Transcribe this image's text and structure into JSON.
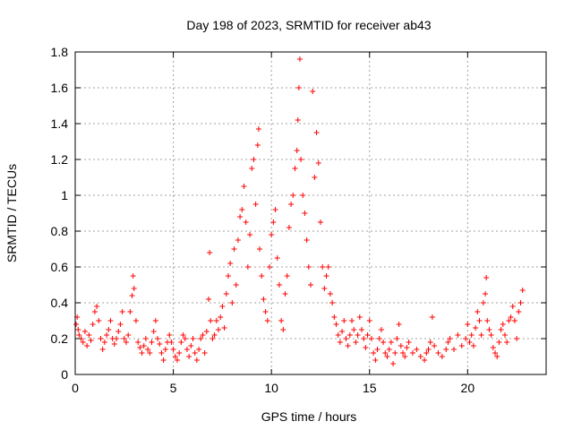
{
  "chart_data": {
    "type": "scatter",
    "title": "Day 198 of 2023, SRMTID for receiver ab43",
    "xlabel": "GPS time / hours",
    "ylabel": "SRMTID / TECUs",
    "xlim": [
      0,
      24
    ],
    "ylim": [
      0,
      1.8
    ],
    "xticks": [
      0,
      5,
      10,
      15,
      20
    ],
    "yticks": [
      0,
      0.2,
      0.4,
      0.6,
      0.8,
      1,
      1.2,
      1.4,
      1.6,
      1.8
    ],
    "grid": true,
    "marker": "+",
    "color": "#ff0000",
    "series": [
      {
        "name": "SRMTID",
        "points": [
          [
            0.05,
            0.28
          ],
          [
            0.1,
            0.32
          ],
          [
            0.15,
            0.25
          ],
          [
            0.2,
            0.22
          ],
          [
            0.3,
            0.2
          ],
          [
            0.4,
            0.18
          ],
          [
            0.5,
            0.24
          ],
          [
            0.6,
            0.16
          ],
          [
            0.7,
            0.22
          ],
          [
            0.8,
            0.19
          ],
          [
            0.9,
            0.28
          ],
          [
            1.0,
            0.35
          ],
          [
            1.1,
            0.38
          ],
          [
            1.2,
            0.3
          ],
          [
            1.3,
            0.2
          ],
          [
            1.4,
            0.14
          ],
          [
            1.5,
            0.18
          ],
          [
            1.6,
            0.22
          ],
          [
            1.7,
            0.25
          ],
          [
            1.8,
            0.3
          ],
          [
            1.9,
            0.2
          ],
          [
            2.0,
            0.17
          ],
          [
            2.1,
            0.2
          ],
          [
            2.2,
            0.24
          ],
          [
            2.3,
            0.28
          ],
          [
            2.4,
            0.35
          ],
          [
            2.5,
            0.2
          ],
          [
            2.6,
            0.18
          ],
          [
            2.7,
            0.22
          ],
          [
            2.8,
            0.35
          ],
          [
            2.9,
            0.44
          ],
          [
            2.95,
            0.55
          ],
          [
            3.0,
            0.48
          ],
          [
            3.1,
            0.3
          ],
          [
            3.2,
            0.18
          ],
          [
            3.3,
            0.15
          ],
          [
            3.4,
            0.12
          ],
          [
            3.5,
            0.16
          ],
          [
            3.6,
            0.2
          ],
          [
            3.7,
            0.14
          ],
          [
            3.8,
            0.12
          ],
          [
            3.9,
            0.18
          ],
          [
            4.0,
            0.24
          ],
          [
            4.1,
            0.3
          ],
          [
            4.2,
            0.2
          ],
          [
            4.3,
            0.17
          ],
          [
            4.4,
            0.12
          ],
          [
            4.5,
            0.08
          ],
          [
            4.6,
            0.14
          ],
          [
            4.7,
            0.18
          ],
          [
            4.8,
            0.22
          ],
          [
            4.9,
            0.18
          ],
          [
            5.0,
            0.14
          ],
          [
            5.1,
            0.1
          ],
          [
            5.2,
            0.08
          ],
          [
            5.3,
            0.12
          ],
          [
            5.4,
            0.18
          ],
          [
            5.5,
            0.22
          ],
          [
            5.6,
            0.2
          ],
          [
            5.7,
            0.14
          ],
          [
            5.8,
            0.1
          ],
          [
            5.9,
            0.16
          ],
          [
            6.0,
            0.2
          ],
          [
            6.1,
            0.12
          ],
          [
            6.2,
            0.08
          ],
          [
            6.3,
            0.14
          ],
          [
            6.4,
            0.2
          ],
          [
            6.5,
            0.22
          ],
          [
            6.6,
            0.12
          ],
          [
            6.7,
            0.24
          ],
          [
            6.8,
            0.42
          ],
          [
            6.9,
            0.3
          ],
          [
            6.85,
            0.68
          ],
          [
            7.0,
            0.2
          ],
          [
            7.1,
            0.22
          ],
          [
            7.2,
            0.3
          ],
          [
            7.3,
            0.25
          ],
          [
            7.4,
            0.32
          ],
          [
            7.5,
            0.38
          ],
          [
            7.6,
            0.26
          ],
          [
            7.7,
            0.45
          ],
          [
            7.8,
            0.55
          ],
          [
            7.9,
            0.62
          ],
          [
            8.0,
            0.4
          ],
          [
            8.1,
            0.7
          ],
          [
            8.2,
            0.5
          ],
          [
            8.3,
            0.75
          ],
          [
            8.4,
            0.88
          ],
          [
            8.5,
            0.92
          ],
          [
            8.6,
            1.05
          ],
          [
            8.7,
            0.85
          ],
          [
            8.8,
            0.6
          ],
          [
            8.9,
            0.78
          ],
          [
            9.0,
            1.15
          ],
          [
            9.1,
            1.2
          ],
          [
            9.2,
            0.95
          ],
          [
            9.3,
            1.28
          ],
          [
            9.35,
            1.37
          ],
          [
            9.4,
            0.7
          ],
          [
            9.5,
            0.55
          ],
          [
            9.6,
            0.42
          ],
          [
            9.7,
            0.35
          ],
          [
            9.8,
            0.3
          ],
          [
            9.9,
            0.6
          ],
          [
            10.0,
            0.78
          ],
          [
            10.1,
            0.85
          ],
          [
            10.2,
            0.92
          ],
          [
            10.3,
            0.65
          ],
          [
            10.4,
            0.5
          ],
          [
            10.5,
            0.3
          ],
          [
            10.6,
            0.25
          ],
          [
            10.7,
            0.45
          ],
          [
            10.8,
            0.55
          ],
          [
            10.9,
            0.82
          ],
          [
            11.0,
            0.95
          ],
          [
            11.1,
            1.0
          ],
          [
            11.2,
            1.15
          ],
          [
            11.3,
            1.25
          ],
          [
            11.35,
            1.42
          ],
          [
            11.4,
            1.6
          ],
          [
            11.45,
            1.76
          ],
          [
            11.5,
            1.2
          ],
          [
            11.6,
            1.0
          ],
          [
            11.7,
            0.9
          ],
          [
            11.8,
            0.75
          ],
          [
            11.9,
            0.6
          ],
          [
            12.0,
            0.5
          ],
          [
            12.1,
            1.58
          ],
          [
            12.2,
            1.1
          ],
          [
            12.3,
            1.35
          ],
          [
            12.4,
            1.18
          ],
          [
            12.5,
            0.85
          ],
          [
            12.6,
            0.6
          ],
          [
            12.7,
            0.48
          ],
          [
            12.8,
            0.55
          ],
          [
            12.9,
            0.6
          ],
          [
            13.0,
            0.45
          ],
          [
            13.1,
            0.4
          ],
          [
            13.2,
            0.32
          ],
          [
            13.3,
            0.28
          ],
          [
            13.4,
            0.22
          ],
          [
            13.5,
            0.18
          ],
          [
            13.6,
            0.24
          ],
          [
            13.7,
            0.3
          ],
          [
            13.8,
            0.2
          ],
          [
            13.9,
            0.16
          ],
          [
            14.0,
            0.22
          ],
          [
            14.1,
            0.3
          ],
          [
            14.2,
            0.25
          ],
          [
            14.3,
            0.18
          ],
          [
            14.4,
            0.22
          ],
          [
            14.5,
            0.32
          ],
          [
            14.6,
            0.25
          ],
          [
            14.7,
            0.2
          ],
          [
            14.8,
            0.15
          ],
          [
            14.9,
            0.22
          ],
          [
            15.0,
            0.3
          ],
          [
            15.1,
            0.2
          ],
          [
            15.2,
            0.12
          ],
          [
            15.3,
            0.08
          ],
          [
            15.4,
            0.14
          ],
          [
            15.5,
            0.2
          ],
          [
            15.6,
            0.25
          ],
          [
            15.7,
            0.18
          ],
          [
            15.8,
            0.12
          ],
          [
            15.9,
            0.1
          ],
          [
            16.0,
            0.14
          ],
          [
            16.1,
            0.18
          ],
          [
            16.2,
            0.06
          ],
          [
            16.3,
            0.12
          ],
          [
            16.4,
            0.2
          ],
          [
            16.5,
            0.28
          ],
          [
            16.6,
            0.16
          ],
          [
            16.7,
            0.12
          ],
          [
            16.8,
            0.1
          ],
          [
            16.9,
            0.15
          ],
          [
            17.0,
            0.18
          ],
          [
            17.2,
            0.12
          ],
          [
            17.4,
            0.14
          ],
          [
            17.6,
            0.1
          ],
          [
            17.8,
            0.08
          ],
          [
            17.9,
            0.12
          ],
          [
            18.0,
            0.14
          ],
          [
            18.1,
            0.18
          ],
          [
            18.2,
            0.32
          ],
          [
            18.3,
            0.16
          ],
          [
            18.5,
            0.12
          ],
          [
            18.7,
            0.1
          ],
          [
            18.9,
            0.14
          ],
          [
            19.0,
            0.18
          ],
          [
            19.1,
            0.2
          ],
          [
            19.3,
            0.14
          ],
          [
            19.5,
            0.22
          ],
          [
            19.7,
            0.16
          ],
          [
            19.9,
            0.2
          ],
          [
            20.0,
            0.28
          ],
          [
            20.1,
            0.18
          ],
          [
            20.2,
            0.22
          ],
          [
            20.3,
            0.16
          ],
          [
            20.4,
            0.26
          ],
          [
            20.5,
            0.35
          ],
          [
            20.6,
            0.3
          ],
          [
            20.7,
            0.22
          ],
          [
            20.8,
            0.4
          ],
          [
            20.9,
            0.45
          ],
          [
            21.0,
            0.3
          ],
          [
            21.1,
            0.25
          ],
          [
            21.2,
            0.22
          ],
          [
            21.3,
            0.15
          ],
          [
            21.4,
            0.12
          ],
          [
            21.5,
            0.1
          ],
          [
            21.6,
            0.18
          ],
          [
            21.7,
            0.25
          ],
          [
            21.8,
            0.28
          ],
          [
            21.9,
            0.22
          ],
          [
            22.0,
            0.18
          ],
          [
            22.1,
            0.3
          ],
          [
            22.2,
            0.32
          ],
          [
            22.3,
            0.38
          ],
          [
            22.4,
            0.3
          ],
          [
            22.5,
            0.2
          ],
          [
            22.6,
            0.35
          ],
          [
            22.7,
            0.4
          ],
          [
            22.8,
            0.47
          ],
          [
            20.95,
            0.54
          ]
        ]
      }
    ]
  }
}
